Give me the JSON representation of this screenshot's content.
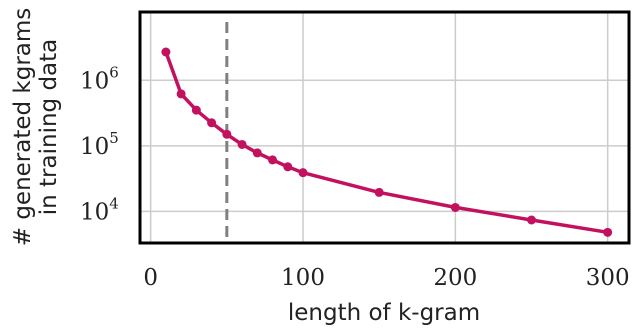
{
  "chart_data": {
    "type": "line",
    "xlabel": "length of k-gram",
    "ylabel_lines": [
      "# generated kgrams",
      "in training data"
    ],
    "x_ticks": [
      0,
      100,
      200,
      300
    ],
    "x_tick_labels": [
      "0",
      "100",
      "200",
      "300"
    ],
    "y_ticks": [
      10000,
      100000,
      1000000
    ],
    "y_tick_labels": [
      {
        "base": "10",
        "exp": "4"
      },
      {
        "base": "10",
        "exp": "5"
      },
      {
        "base": "10",
        "exp": "6"
      }
    ],
    "xlim": [
      -7,
      314
    ],
    "ylim": [
      3300,
      11000000
    ],
    "yscale": "log",
    "grid": true,
    "vline": {
      "x": 50,
      "style": "dashed",
      "color": "#808080"
    },
    "series": [
      {
        "color": "#c2125f",
        "x": [
          10,
          20,
          30,
          40,
          50,
          60,
          70,
          80,
          90,
          100,
          150,
          200,
          250,
          300
        ],
        "y": [
          2700000,
          620000,
          350000,
          225000,
          150000,
          105000,
          78000,
          61000,
          48000,
          39000,
          19500,
          11500,
          7400,
          4800
        ]
      }
    ]
  }
}
